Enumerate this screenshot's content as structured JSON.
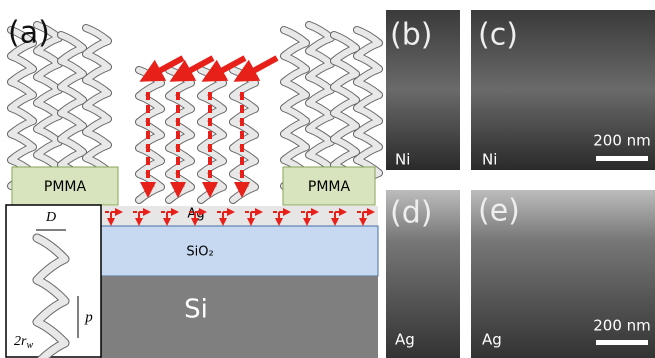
{
  "panels": {
    "a": {
      "label": "(a)",
      "pmma_left": "PMMA",
      "pmma_right": "PMMA",
      "ag_layer": "Ag",
      "sio2_layer": "SiO₂",
      "si_layer": "Si",
      "inset": {
        "diameter": "D",
        "pitch": "p",
        "wire_base": "2r",
        "wire_sub": "w"
      }
    },
    "b": {
      "label": "(b)",
      "material": "Ni"
    },
    "c": {
      "label": "(c)",
      "material": "Ni",
      "scale_bar": "200 nm"
    },
    "d": {
      "label": "(d)",
      "material": "Ag"
    },
    "e": {
      "label": "(e)",
      "material": "Ag",
      "scale_bar": "200 nm"
    }
  }
}
